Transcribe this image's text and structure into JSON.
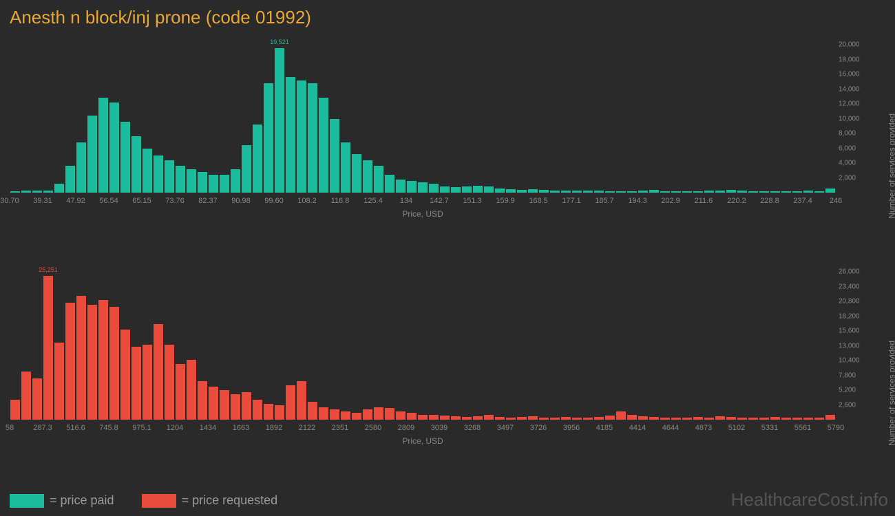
{
  "title": "Anesth n block/inj prone (code 01992)",
  "background_color": "#2a2a2a",
  "title_color": "#e8a736",
  "title_fontsize": 26,
  "axis_text_color": "#888888",
  "grid_color": "#333333",
  "chart1": {
    "type": "histogram",
    "color": "#1abc9c",
    "peak_label": "19,521",
    "peak_index": 24,
    "x_label": "Price, USD",
    "y_label": "Number of services provided",
    "ymax": 20000,
    "y_ticks": [
      "2,000",
      "4,000",
      "6,000",
      "8,000",
      "10,000",
      "12,000",
      "14,000",
      "16,000",
      "18,000",
      "20,000"
    ],
    "x_ticks": [
      "30.70",
      "39.31",
      "47.92",
      "56.54",
      "65.15",
      "73.76",
      "82.37",
      "90.98",
      "99.60",
      "108.2",
      "116.8",
      "125.4",
      "134",
      "142.7",
      "151.3",
      "159.9",
      "168.5",
      "177.1",
      "185.7",
      "194.3",
      "202.9",
      "211.6",
      "220.2",
      "228.8",
      "237.4",
      "246"
    ],
    "values": [
      200,
      300,
      250,
      300,
      1200,
      3600,
      6800,
      10400,
      12800,
      12200,
      9600,
      7600,
      6000,
      5000,
      4400,
      3600,
      3200,
      2800,
      2400,
      2400,
      3200,
      6400,
      9200,
      14800,
      19521,
      15600,
      15200,
      14800,
      12800,
      10000,
      6800,
      5200,
      4400,
      3600,
      2400,
      1800,
      1600,
      1400,
      1200,
      800,
      700,
      800,
      900,
      800,
      600,
      500,
      400,
      500,
      400,
      300,
      300,
      300,
      250,
      250,
      200,
      200,
      200,
      300,
      400,
      200,
      200,
      200,
      200,
      300,
      300,
      400,
      250,
      200,
      200,
      200,
      200,
      200,
      300,
      200,
      600
    ]
  },
  "chart2": {
    "type": "histogram",
    "color": "#e74c3c",
    "peak_label": "25,251",
    "peak_index": 3,
    "x_label": "Price, USD",
    "y_label": "Number of services provided",
    "ymax": 26000,
    "y_ticks": [
      "2,600",
      "5,200",
      "7,800",
      "10,400",
      "13,000",
      "15,600",
      "18,200",
      "20,800",
      "23,400",
      "26,000"
    ],
    "x_ticks": [
      "58",
      "287.3",
      "516.6",
      "745.8",
      "975.1",
      "1204",
      "1434",
      "1663",
      "1892",
      "2122",
      "2351",
      "2580",
      "2809",
      "3039",
      "3268",
      "3497",
      "3726",
      "3956",
      "4185",
      "4414",
      "4644",
      "4873",
      "5102",
      "5331",
      "5561",
      "5790"
    ],
    "values": [
      3500,
      8500,
      7200,
      25251,
      13500,
      20500,
      21800,
      20200,
      21000,
      19800,
      15800,
      12800,
      13200,
      16800,
      13200,
      9800,
      10500,
      6800,
      5800,
      5200,
      4500,
      4800,
      3500,
      2800,
      2500,
      6000,
      6800,
      3200,
      2200,
      1800,
      1500,
      1200,
      1800,
      2200,
      2000,
      1400,
      1200,
      800,
      900,
      700,
      600,
      500,
      600,
      800,
      500,
      400,
      500,
      600,
      400,
      400,
      500,
      400,
      400,
      500,
      700,
      1400,
      800,
      600,
      500,
      400,
      400,
      400,
      500,
      400,
      600,
      500,
      400,
      400,
      400,
      500,
      400,
      400,
      400,
      400,
      900
    ]
  },
  "legend": {
    "items": [
      {
        "color": "#1abc9c",
        "label": "= price paid"
      },
      {
        "color": "#e74c3c",
        "label": "= price requested"
      }
    ]
  },
  "watermark": "HealthcareCost.info"
}
